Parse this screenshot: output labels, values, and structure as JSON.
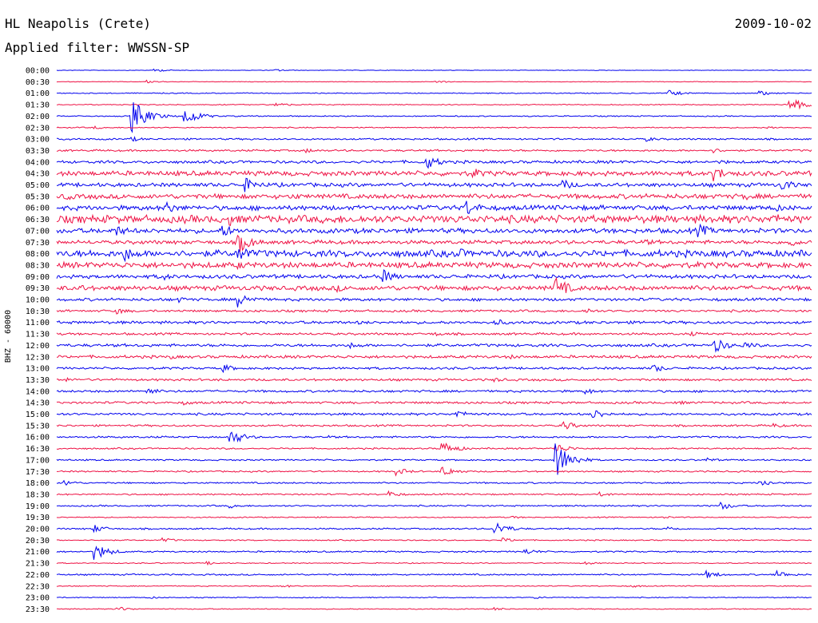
{
  "header": {
    "station": "HL Neapolis (Crete)",
    "date": "2009-10-02",
    "filter": "Applied filter: WWSSN-SP"
  },
  "channel_label": "BHZ - 60000",
  "colors": {
    "trace_a": "#0000ee",
    "trace_b": "#ee1144",
    "text": "#000000",
    "background": "#ffffff"
  },
  "chart_data": {
    "type": "line",
    "title": "HL Neapolis (Crete)",
    "subtitle": "Applied filter: WWSSN-SP",
    "date": "2009-10-02",
    "ylabel": "BHZ - 60000",
    "xlabel": "",
    "grid": false,
    "color_cycle": [
      "#0000ee",
      "#ee1144"
    ],
    "rows": [
      {
        "time": "00:00",
        "level": 0.3,
        "bursts": [
          {
            "at": 0.13,
            "amp": 2
          },
          {
            "at": 0.29,
            "amp": 1.5
          }
        ]
      },
      {
        "time": "00:30",
        "level": 0.3,
        "bursts": [
          {
            "at": 0.12,
            "amp": 2
          },
          {
            "at": 0.5,
            "amp": 2
          }
        ]
      },
      {
        "time": "01:00",
        "level": 0.5,
        "bursts": [
          {
            "at": 0.81,
            "amp": 4
          },
          {
            "at": 0.93,
            "amp": 3
          }
        ]
      },
      {
        "time": "01:30",
        "level": 0.5,
        "bursts": [
          {
            "at": 0.29,
            "amp": 3
          },
          {
            "at": 0.97,
            "amp": 9
          }
        ]
      },
      {
        "time": "02:00",
        "level": 0.6,
        "bursts": [
          {
            "at": 0.1,
            "amp": 22
          },
          {
            "at": 0.17,
            "amp": 11
          }
        ]
      },
      {
        "time": "02:30",
        "level": 0.6,
        "bursts": [
          {
            "at": 0.05,
            "amp": 2
          },
          {
            "at": 0.94,
            "amp": 2
          }
        ]
      },
      {
        "time": "03:00",
        "level": 0.9,
        "bursts": [
          {
            "at": 0.1,
            "amp": 3
          },
          {
            "at": 0.78,
            "amp": 3
          }
        ]
      },
      {
        "time": "03:30",
        "level": 1,
        "bursts": [
          {
            "at": 0.33,
            "amp": 3
          },
          {
            "at": 0.87,
            "amp": 3
          }
        ]
      },
      {
        "time": "04:00",
        "level": 1.5,
        "bursts": [
          {
            "at": 0.49,
            "amp": 9
          },
          {
            "at": 0.88,
            "amp": 3
          }
        ]
      },
      {
        "time": "04:30",
        "level": 2.5,
        "bursts": [
          {
            "at": 0.55,
            "amp": 8
          },
          {
            "at": 0.87,
            "amp": 10
          }
        ]
      },
      {
        "time": "05:00",
        "level": 2,
        "bursts": [
          {
            "at": 0.25,
            "amp": 9
          },
          {
            "at": 0.67,
            "amp": 7
          },
          {
            "at": 0.96,
            "amp": 8
          }
        ]
      },
      {
        "time": "05:30",
        "level": 2.5,
        "bursts": [
          {
            "at": 0.01,
            "amp": 6
          },
          {
            "at": 0.31,
            "amp": 5
          },
          {
            "at": 0.91,
            "amp": 5
          }
        ]
      },
      {
        "time": "06:00",
        "level": 2.5,
        "bursts": [
          {
            "at": 0.14,
            "amp": 10
          },
          {
            "at": 0.54,
            "amp": 12
          },
          {
            "at": 0.95,
            "amp": 6
          }
        ]
      },
      {
        "time": "06:30",
        "level": 4,
        "bursts": [
          {
            "at": 0.23,
            "amp": 8
          },
          {
            "at": 0.95,
            "amp": 8
          }
        ]
      },
      {
        "time": "07:00",
        "level": 2.5,
        "bursts": [
          {
            "at": 0.08,
            "amp": 7
          },
          {
            "at": 0.22,
            "amp": 8
          },
          {
            "at": 0.85,
            "amp": 9
          }
        ]
      },
      {
        "time": "07:30",
        "level": 2,
        "bursts": [
          {
            "at": 0.24,
            "amp": 14
          },
          {
            "at": 0.78,
            "amp": 4
          },
          {
            "at": 0.97,
            "amp": 6
          }
        ]
      },
      {
        "time": "08:00",
        "level": 3.5,
        "bursts": [
          {
            "at": 0.09,
            "amp": 10
          },
          {
            "at": 0.24,
            "amp": 12
          },
          {
            "at": 0.53,
            "amp": 8
          }
        ]
      },
      {
        "time": "08:30",
        "level": 3,
        "bursts": [
          {
            "at": 0.24,
            "amp": 5
          },
          {
            "at": 0.72,
            "amp": 4
          }
        ]
      },
      {
        "time": "09:00",
        "level": 2,
        "bursts": [
          {
            "at": 0.14,
            "amp": 5
          },
          {
            "at": 0.43,
            "amp": 10
          }
        ]
      },
      {
        "time": "09:30",
        "level": 2.5,
        "bursts": [
          {
            "at": 0.03,
            "amp": 5
          },
          {
            "at": 0.37,
            "amp": 5
          },
          {
            "at": 0.66,
            "amp": 14
          }
        ]
      },
      {
        "time": "10:00",
        "level": 1.5,
        "bursts": [
          {
            "at": 0.24,
            "amp": 10
          },
          {
            "at": 0.16,
            "amp": 4
          }
        ]
      },
      {
        "time": "10:30",
        "level": 1.2,
        "bursts": [
          {
            "at": 0.08,
            "amp": 4
          },
          {
            "at": 0.7,
            "amp": 4
          }
        ]
      },
      {
        "time": "11:00",
        "level": 1.5,
        "bursts": [
          {
            "at": 0.4,
            "amp": 3
          },
          {
            "at": 0.58,
            "amp": 5
          }
        ]
      },
      {
        "time": "11:30",
        "level": 1.2,
        "bursts": [
          {
            "at": 0.5,
            "amp": 3
          },
          {
            "at": 0.84,
            "amp": 3
          }
        ]
      },
      {
        "time": "12:00",
        "level": 1.5,
        "bursts": [
          {
            "at": 0.39,
            "amp": 4
          },
          {
            "at": 0.87,
            "amp": 10
          },
          {
            "at": 0.91,
            "amp": 5
          }
        ]
      },
      {
        "time": "12:30",
        "level": 1.5,
        "bursts": [
          {
            "at": 0.15,
            "amp": 3
          },
          {
            "at": 0.6,
            "amp": 3
          }
        ]
      },
      {
        "time": "13:00",
        "level": 1.2,
        "bursts": [
          {
            "at": 0.22,
            "amp": 5
          },
          {
            "at": 0.79,
            "amp": 5
          }
        ]
      },
      {
        "time": "13:30",
        "level": 1.2,
        "bursts": [
          {
            "at": 0.01,
            "amp": 3
          },
          {
            "at": 0.58,
            "amp": 3
          }
        ]
      },
      {
        "time": "14:00",
        "level": 1.2,
        "bursts": [
          {
            "at": 0.12,
            "amp": 5
          },
          {
            "at": 0.7,
            "amp": 4
          }
        ]
      },
      {
        "time": "14:30",
        "level": 1.2,
        "bursts": [
          {
            "at": 0.17,
            "amp": 3
          },
          {
            "at": 0.82,
            "amp": 3
          }
        ]
      },
      {
        "time": "15:00",
        "level": 1.2,
        "bursts": [
          {
            "at": 0.53,
            "amp": 5
          },
          {
            "at": 0.71,
            "amp": 7
          }
        ]
      },
      {
        "time": "15:30",
        "level": 1,
        "bursts": [
          {
            "at": 0.67,
            "amp": 6
          },
          {
            "at": 0.95,
            "amp": 3
          }
        ]
      },
      {
        "time": "16:00",
        "level": 1,
        "bursts": [
          {
            "at": 0.23,
            "amp": 10
          },
          {
            "at": 0.36,
            "amp": 2
          }
        ]
      },
      {
        "time": "16:30",
        "level": 0.8,
        "bursts": [
          {
            "at": 0.51,
            "amp": 9
          },
          {
            "at": 0.66,
            "amp": 7
          }
        ]
      },
      {
        "time": "17:00",
        "level": 0.8,
        "bursts": [
          {
            "at": 0.66,
            "amp": 24
          },
          {
            "at": 0.86,
            "amp": 3
          }
        ]
      },
      {
        "time": "17:30",
        "level": 0.8,
        "bursts": [
          {
            "at": 0.45,
            "amp": 5
          },
          {
            "at": 0.51,
            "amp": 7
          }
        ]
      },
      {
        "time": "18:00",
        "level": 0.8,
        "bursts": [
          {
            "at": 0.01,
            "amp": 4
          },
          {
            "at": 0.93,
            "amp": 5
          }
        ]
      },
      {
        "time": "18:30",
        "level": 0.8,
        "bursts": [
          {
            "at": 0.44,
            "amp": 4
          },
          {
            "at": 0.72,
            "amp": 3
          }
        ]
      },
      {
        "time": "19:00",
        "level": 0.8,
        "bursts": [
          {
            "at": 0.23,
            "amp": 3
          },
          {
            "at": 0.88,
            "amp": 5
          }
        ]
      },
      {
        "time": "19:30",
        "level": 0.6,
        "bursts": [
          {
            "at": 0.6,
            "amp": 2
          },
          {
            "at": 0.8,
            "amp": 2
          }
        ]
      },
      {
        "time": "20:00",
        "level": 0.8,
        "bursts": [
          {
            "at": 0.05,
            "amp": 5
          },
          {
            "at": 0.58,
            "amp": 9
          },
          {
            "at": 0.81,
            "amp": 3
          }
        ]
      },
      {
        "time": "20:30",
        "level": 0.6,
        "bursts": [
          {
            "at": 0.14,
            "amp": 3
          },
          {
            "at": 0.59,
            "amp": 3
          }
        ]
      },
      {
        "time": "21:00",
        "level": 0.8,
        "bursts": [
          {
            "at": 0.05,
            "amp": 11
          },
          {
            "at": 0.62,
            "amp": 4
          }
        ]
      },
      {
        "time": "21:30",
        "level": 0.5,
        "bursts": [
          {
            "at": 0.2,
            "amp": 2
          },
          {
            "at": 0.7,
            "amp": 2
          }
        ]
      },
      {
        "time": "22:00",
        "level": 0.8,
        "bursts": [
          {
            "at": 0.86,
            "amp": 5
          },
          {
            "at": 0.95,
            "amp": 6
          }
        ]
      },
      {
        "time": "22:30",
        "level": 0.5,
        "bursts": [
          {
            "at": 0.3,
            "amp": 2
          },
          {
            "at": 0.76,
            "amp": 2
          }
        ]
      },
      {
        "time": "23:00",
        "level": 0.5,
        "bursts": [
          {
            "at": 0.12,
            "amp": 2
          },
          {
            "at": 0.63,
            "amp": 2
          }
        ]
      },
      {
        "time": "23:30",
        "level": 0.5,
        "bursts": [
          {
            "at": 0.08,
            "amp": 3
          },
          {
            "at": 0.58,
            "amp": 2
          }
        ]
      }
    ]
  }
}
